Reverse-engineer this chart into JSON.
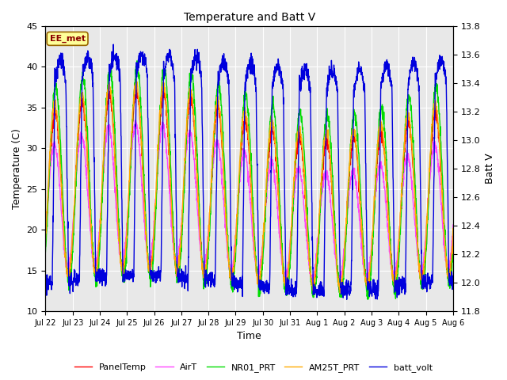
{
  "title": "Temperature and Batt V",
  "xlabel": "Time",
  "ylabel_left": "Temperature (C)",
  "ylabel_right": "Batt V",
  "annotation": "EE_met",
  "ylim_left": [
    10,
    45
  ],
  "ylim_right": [
    11.8,
    13.8
  ],
  "yticks_left": [
    10,
    15,
    20,
    25,
    30,
    35,
    40,
    45
  ],
  "yticks_right": [
    11.8,
    12.0,
    12.2,
    12.4,
    12.6,
    12.8,
    13.0,
    13.2,
    13.4,
    13.6,
    13.8
  ],
  "xtick_labels": [
    "Jul 22",
    "Jul 23",
    "Jul 24",
    "Jul 25",
    "Jul 26",
    "Jul 27",
    "Jul 28",
    "Jul 29",
    "Jul 30",
    "Jul 31",
    "Aug 1",
    "Aug 2",
    "Aug 3",
    "Aug 4",
    "Aug 5",
    "Aug 6"
  ],
  "series_PanelTemp_color": "#ff0000",
  "series_AirT_color": "#ff44ff",
  "series_NR01_PRT_color": "#00dd00",
  "series_AM25T_PRT_color": "#ffaa00",
  "series_batt_volt_color": "#0000dd",
  "lw": 1.0,
  "fig_bg": "#ffffff",
  "plot_bg": "#e8e8e8",
  "grid_color": "#ffffff",
  "annotation_fg": "#8b0000",
  "annotation_bg": "#ffff99",
  "annotation_edge": "#996600"
}
